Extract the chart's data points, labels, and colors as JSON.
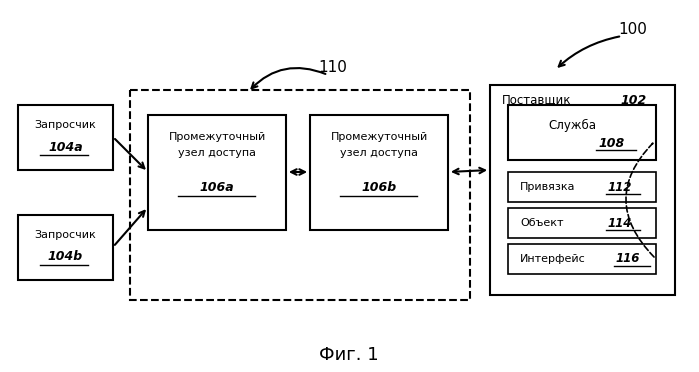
{
  "bg_color": "#ffffff",
  "title": "Фиг. 1",
  "label_100": "100",
  "label_110": "110",
  "requester_a_line1": "Запросчик",
  "requester_a_line2": "104а",
  "requester_b_line1": "Запросчик",
  "requester_b_line2": "104b",
  "node_a_line1": "Промежуточный",
  "node_a_line2": "узел доступа",
  "node_a_line3": "106а",
  "node_b_line1": "Промежуточный",
  "node_b_line2": "узел доступа",
  "node_b_line3": "106b",
  "provider_title": "Поставщик",
  "provider_num": "102",
  "service_line1": "Служба",
  "service_num": "108",
  "binding_line1": "Привязка",
  "binding_num": "112",
  "object_line1": "Объект",
  "object_num": "114",
  "interface_line1": "Интерфейс",
  "interface_num": "116"
}
